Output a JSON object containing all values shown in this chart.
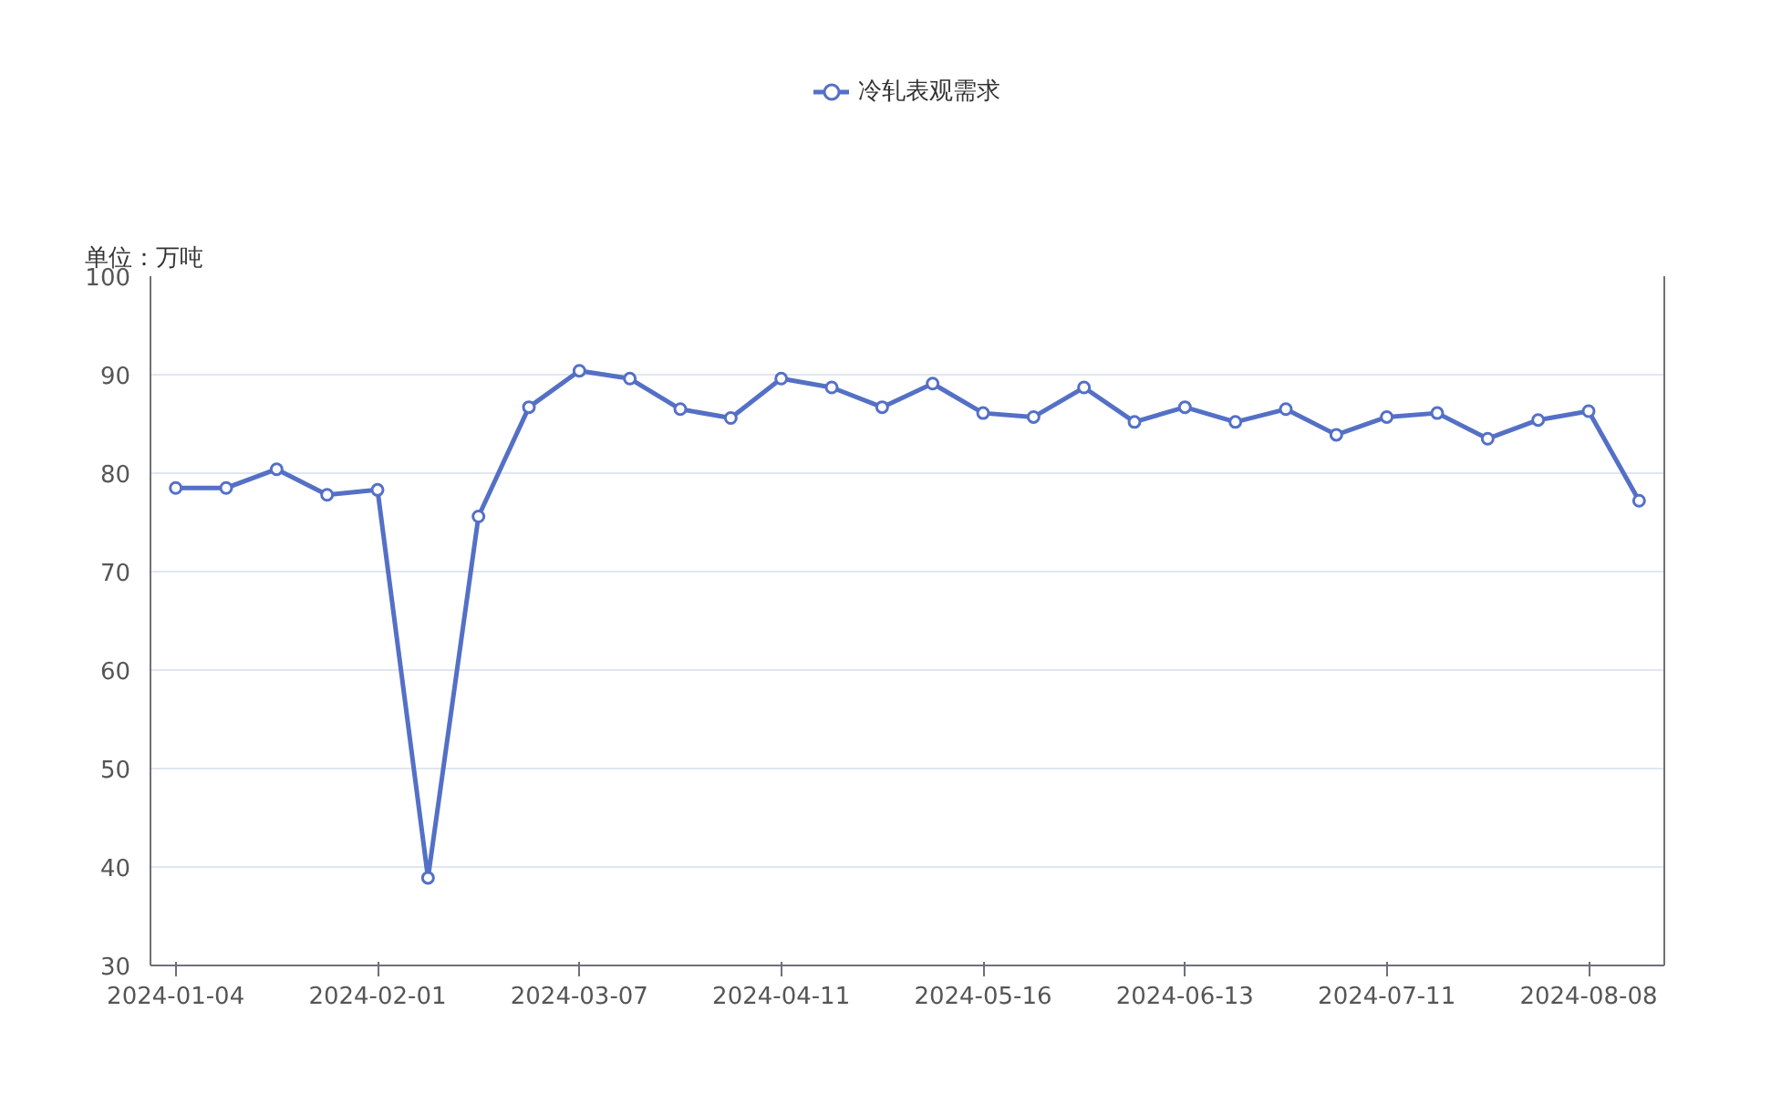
{
  "chart_data": {
    "type": "line",
    "ylabel": "单位：万吨",
    "categories": [
      "2024-01-04",
      null,
      null,
      null,
      "2024-02-01",
      null,
      null,
      null,
      "2024-03-07",
      null,
      null,
      null,
      "2024-04-11",
      null,
      null,
      null,
      "2024-05-16",
      null,
      null,
      null,
      "2024-06-13",
      null,
      null,
      null,
      "2024-07-11",
      null,
      null,
      null,
      "2024-08-08",
      null
    ],
    "series": [
      {
        "name": "冷轧表观需求",
        "color": "#5470c6",
        "values": [
          78.5,
          78.5,
          80.4,
          77.8,
          78.3,
          38.9,
          75.6,
          86.7,
          90.4,
          89.6,
          86.5,
          85.6,
          89.6,
          88.7,
          86.7,
          89.1,
          86.1,
          85.7,
          88.7,
          85.2,
          86.7,
          85.2,
          86.5,
          83.9,
          85.7,
          86.1,
          83.5,
          85.4,
          86.3,
          77.2
        ]
      }
    ],
    "ylim": [
      30,
      100
    ],
    "yticks": [
      30,
      40,
      50,
      60,
      70,
      80,
      90,
      100
    ],
    "grid": "y",
    "legend": "top",
    "marker": "circle",
    "line_style": "solid"
  }
}
